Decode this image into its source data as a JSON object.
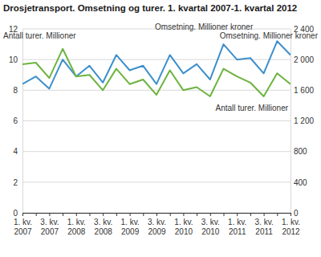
{
  "chart_data": {
    "type": "line",
    "title": "Drosjetransport. Omsetning og turer. 1. kvartal 2007-1. kvartal 2012",
    "categories": [
      "1. kv. 2007",
      null,
      "3. kv. 2007",
      null,
      "1. kv. 2008",
      null,
      "3. kv. 2008",
      null,
      "1. kv. 2009",
      null,
      "3. kv. 2009",
      null,
      "1. kv. 2010",
      null,
      "3. kv. 2010",
      null,
      "1. kv. 2011",
      null,
      "3. kv. 2011",
      null,
      "1. kv. 2012"
    ],
    "series": [
      {
        "name": "Omsetning. Millioner kroner",
        "color": "#3d8fcb",
        "axis": "y2",
        "values": [
          1680,
          1780,
          1620,
          2000,
          1780,
          1920,
          1700,
          2060,
          1860,
          1920,
          1680,
          2060,
          1820,
          1940,
          1740,
          2200,
          2000,
          2020,
          1820,
          2240,
          2060
        ]
      },
      {
        "name": "Antall turer. Millioner",
        "color": "#6db33f",
        "values": [
          9.7,
          9.8,
          8.8,
          10.7,
          8.9,
          9.0,
          8.0,
          9.4,
          8.4,
          8.7,
          7.7,
          9.3,
          8.0,
          8.2,
          7.6,
          9.4,
          8.9,
          8.5,
          7.6,
          9.1,
          8.4
        ]
      }
    ],
    "y_label": "Antall turer. Millioner",
    "y2_label": "Omsetning. Millioner kroner",
    "ylim": [
      0,
      12
    ],
    "yticks": [
      0,
      2,
      4,
      6,
      8,
      10,
      12
    ],
    "y2lim": [
      0,
      2400
    ],
    "y2ticks": [
      0,
      400,
      800,
      {
        "value": 1200,
        "label": "1 200"
      },
      {
        "value": 1600,
        "label": "1 600"
      },
      {
        "value": 2000,
        "label": "2 000"
      },
      {
        "value": 2400,
        "label": "2 400"
      }
    ],
    "grid": true
  }
}
